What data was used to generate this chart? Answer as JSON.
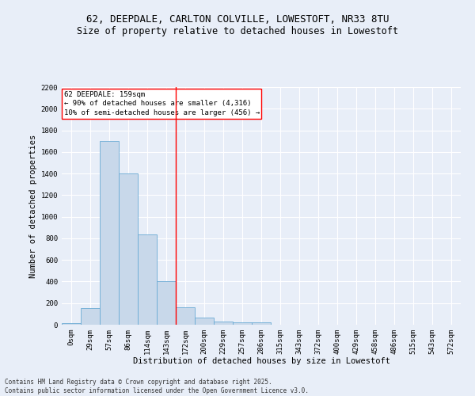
{
  "title_line1": "62, DEEPDALE, CARLTON COLVILLE, LOWESTOFT, NR33 8TU",
  "title_line2": "Size of property relative to detached houses in Lowestoft",
  "xlabel": "Distribution of detached houses by size in Lowestoft",
  "ylabel": "Number of detached properties",
  "bar_labels": [
    "0sqm",
    "29sqm",
    "57sqm",
    "86sqm",
    "114sqm",
    "143sqm",
    "172sqm",
    "200sqm",
    "229sqm",
    "257sqm",
    "286sqm",
    "315sqm",
    "343sqm",
    "372sqm",
    "400sqm",
    "429sqm",
    "458sqm",
    "486sqm",
    "515sqm",
    "543sqm",
    "572sqm"
  ],
  "bar_values": [
    15,
    155,
    1700,
    1400,
    835,
    400,
    160,
    65,
    30,
    25,
    25,
    0,
    0,
    0,
    0,
    0,
    0,
    0,
    0,
    0,
    0
  ],
  "bar_color": "#c8d8ea",
  "bar_edgecolor": "#6aaad4",
  "bg_color": "#e8eef8",
  "grid_color": "#ffffff",
  "vline_x": 5.5,
  "vline_color": "red",
  "annotation_title": "62 DEEPDALE: 159sqm",
  "annotation_line1": "← 90% of detached houses are smaller (4,316)",
  "annotation_line2": "10% of semi-detached houses are larger (456) →",
  "annotation_box_facecolor": "white",
  "annotation_box_edgecolor": "red",
  "ylim": [
    0,
    2200
  ],
  "yticks": [
    0,
    200,
    400,
    600,
    800,
    1000,
    1200,
    1400,
    1600,
    1800,
    2000,
    2200
  ],
  "footer_line1": "Contains HM Land Registry data © Crown copyright and database right 2025.",
  "footer_line2": "Contains public sector information licensed under the Open Government Licence v3.0.",
  "title_fontsize": 9,
  "subtitle_fontsize": 8.5,
  "axis_label_fontsize": 7.5,
  "tick_fontsize": 6.5,
  "annotation_fontsize": 6.5,
  "footer_fontsize": 5.5
}
